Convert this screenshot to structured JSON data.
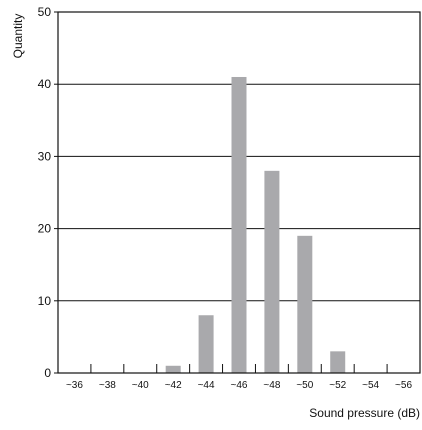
{
  "chart_data": {
    "type": "bar",
    "title": "",
    "xlabel": "Sound pressure (dB)",
    "ylabel": "Quantity",
    "categories": [
      "~36",
      "~38",
      "~40",
      "~42",
      "~44",
      "~46",
      "~48",
      "~50",
      "~52",
      "~54",
      "~56"
    ],
    "values": [
      0,
      0,
      0,
      1,
      8,
      41,
      28,
      19,
      3,
      0,
      0
    ],
    "ylim": [
      0,
      50
    ],
    "yticks": [
      0,
      10,
      20,
      30,
      40,
      50
    ],
    "grid": true,
    "legend": "none",
    "colors": {
      "bar": "#a9a9ac",
      "axis": "#111111",
      "grid": "#111111"
    }
  }
}
